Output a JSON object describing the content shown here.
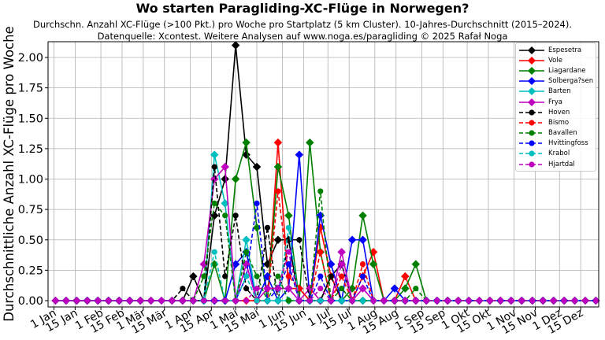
{
  "title": "Wo starten Paragliding-XC-Flüge in Norwegen?",
  "subtitle_line1": "Durchschn. Anzahl XC-Flüge (>100 Pkt.) pro Woche pro Startplatz (5 km Cluster). 10-Jahres-Durchschnitt (2015–2024).",
  "subtitle_line2": "Datenquelle: Xcontest. Weitere Analysen auf www.noga.es/paragliding © 2025 Rafał Noga",
  "chart_data": {
    "type": "line",
    "title": "Wo starten Paragliding-XC-Flüge in Norwegen?",
    "xlabel": "",
    "ylabel": "Durchschnittliche Anzahl XC-Flüge pro Woche",
    "ylim": [
      -0.05,
      2.14
    ],
    "grid": true,
    "legend_position": "upper right",
    "x": "week index 1..52 (weekly points from 1 Jan to end Dec)",
    "xtick_labels": [
      "1 Jan",
      "15 Jan",
      "1 Feb",
      "15 Feb",
      "1 Mär",
      "15 Mär",
      "1 Apr",
      "15 Apr",
      "1 Mai",
      "15 Mai",
      "1 Jun",
      "15 Jun",
      "1 Jul",
      "15 Jul",
      "1 Aug",
      "15 Aug",
      "1 Sep",
      "15 Sep",
      "1 Okt",
      "15 Okt",
      "1 Nov",
      "15 Nov",
      "1 Dez",
      "15 Dez"
    ],
    "ytick_labels": [
      "0.00",
      "0.25",
      "0.50",
      "0.75",
      "1.00",
      "1.25",
      "1.50",
      "1.75",
      "2.00"
    ],
    "series": [
      {
        "name": "Espesetra",
        "color": "#000000",
        "style": "solid",
        "marker": "diamond",
        "values": [
          0,
          0,
          0,
          0,
          0,
          0,
          0,
          0,
          0,
          0,
          0,
          0,
          0,
          0.2,
          0,
          0.7,
          1.0,
          2.1,
          1.2,
          1.1,
          0.3,
          0.5,
          0.5,
          0,
          0,
          0,
          0.2,
          0.3,
          0,
          0,
          0,
          0,
          0,
          0,
          0,
          0,
          0,
          0,
          0,
          0,
          0,
          0,
          0,
          0,
          0,
          0,
          0,
          0,
          0,
          0,
          0,
          0
        ]
      },
      {
        "name": "Vole",
        "color": "#ff0000",
        "style": "solid",
        "marker": "diamond",
        "values": [
          0,
          0,
          0,
          0,
          0,
          0,
          0,
          0,
          0,
          0,
          0,
          0,
          0,
          0,
          0,
          0,
          0,
          0,
          0,
          0,
          0,
          1.3,
          0.1,
          0.1,
          0,
          0.6,
          0.2,
          0,
          0,
          0.2,
          0.4,
          0,
          0,
          0.2,
          0,
          0,
          0,
          0,
          0,
          0,
          0,
          0,
          0,
          0,
          0,
          0,
          0,
          0,
          0,
          0,
          0,
          0
        ]
      },
      {
        "name": "Liagardane",
        "color": "#008000",
        "style": "solid",
        "marker": "diamond",
        "values": [
          0,
          0,
          0,
          0,
          0,
          0,
          0,
          0,
          0,
          0,
          0,
          0,
          0,
          0,
          0,
          0.3,
          0,
          1.0,
          1.3,
          0.6,
          0,
          1.1,
          0.7,
          0,
          1.3,
          0.4,
          0,
          0,
          0.1,
          0.7,
          0.3,
          0,
          0,
          0.1,
          0.3,
          0,
          0,
          0,
          0,
          0,
          0,
          0,
          0,
          0,
          0,
          0,
          0,
          0,
          0,
          0,
          0,
          0
        ]
      },
      {
        "name": "Solberga?sen",
        "color": "#0000ff",
        "style": "solid",
        "marker": "diamond",
        "values": [
          0,
          0,
          0,
          0,
          0,
          0,
          0,
          0,
          0,
          0,
          0,
          0,
          0,
          0,
          0,
          0,
          0,
          0.3,
          0.4,
          0,
          0.2,
          0,
          0.1,
          1.2,
          0,
          0.7,
          0.3,
          0,
          0.5,
          0.5,
          0,
          0,
          0.1,
          0,
          0,
          0,
          0,
          0,
          0,
          0,
          0,
          0,
          0,
          0,
          0,
          0,
          0,
          0,
          0,
          0,
          0,
          0
        ]
      },
      {
        "name": "Barten",
        "color": "#00bfbf",
        "style": "solid",
        "marker": "diamond",
        "values": [
          0,
          0,
          0,
          0,
          0,
          0,
          0,
          0,
          0,
          0,
          0,
          0,
          0,
          0,
          0,
          1.2,
          0.8,
          0,
          0.5,
          0,
          0,
          0,
          0,
          0,
          0,
          0,
          0,
          0,
          0,
          0,
          0,
          0,
          0,
          0,
          0,
          0,
          0,
          0,
          0,
          0,
          0,
          0,
          0,
          0,
          0,
          0,
          0,
          0,
          0,
          0,
          0,
          0
        ]
      },
      {
        "name": "Frya",
        "color": "#bf00bf",
        "style": "solid",
        "marker": "diamond",
        "values": [
          0,
          0,
          0,
          0,
          0,
          0,
          0,
          0,
          0,
          0,
          0,
          0,
          0,
          0,
          0.3,
          1.0,
          1.1,
          0,
          0.3,
          0,
          0.1,
          0.1,
          0.1,
          0,
          0.1,
          0,
          0,
          0.4,
          0,
          0.1,
          0,
          0,
          0,
          0,
          0,
          0,
          0,
          0,
          0,
          0,
          0,
          0,
          0,
          0,
          0,
          0,
          0,
          0,
          0,
          0,
          0,
          0
        ]
      },
      {
        "name": "Hoven",
        "color": "#000000",
        "style": "dashed",
        "marker": "circle",
        "values": [
          0,
          0,
          0,
          0,
          0,
          0,
          0,
          0,
          0,
          0,
          0,
          0,
          0.1,
          0,
          0,
          1.1,
          0.2,
          0.7,
          0.1,
          0,
          0.6,
          0,
          0.5,
          0.5,
          0,
          0,
          0.2,
          0,
          0,
          0,
          0,
          0,
          0,
          0,
          0,
          0,
          0,
          0,
          0,
          0,
          0,
          0,
          0,
          0,
          0,
          0,
          0,
          0,
          0,
          0,
          0,
          0
        ]
      },
      {
        "name": "Bismo",
        "color": "#ff0000",
        "style": "dashed",
        "marker": "circle",
        "values": [
          0,
          0,
          0,
          0,
          0,
          0,
          0,
          0,
          0,
          0,
          0,
          0,
          0,
          0,
          0,
          0,
          0,
          0,
          0,
          0,
          0,
          0.9,
          0.2,
          0.1,
          0,
          0.4,
          0,
          0.2,
          0,
          0.3,
          0,
          0,
          0,
          0,
          0,
          0,
          0,
          0,
          0,
          0,
          0,
          0,
          0,
          0,
          0,
          0,
          0,
          0,
          0,
          0,
          0,
          0
        ]
      },
      {
        "name": "Bavallen",
        "color": "#008000",
        "style": "dashed",
        "marker": "circle",
        "values": [
          0,
          0,
          0,
          0,
          0,
          0,
          0,
          0,
          0,
          0,
          0,
          0,
          0,
          0,
          0.2,
          0.8,
          0.7,
          0,
          0.4,
          0.2,
          0,
          0.2,
          0,
          0,
          0,
          0.9,
          0,
          0.1,
          0,
          0,
          0,
          0,
          0,
          0,
          0.1,
          0,
          0,
          0,
          0,
          0,
          0,
          0,
          0,
          0,
          0,
          0,
          0,
          0,
          0,
          0,
          0,
          0
        ]
      },
      {
        "name": "Hvittingfoss",
        "color": "#0000ff",
        "style": "dashed",
        "marker": "circle",
        "values": [
          0,
          0,
          0,
          0,
          0,
          0,
          0,
          0,
          0,
          0,
          0,
          0,
          0,
          0,
          0,
          0,
          0,
          0,
          0.2,
          0.8,
          0,
          0.1,
          0.3,
          0,
          0,
          0.2,
          0,
          0,
          0,
          0.2,
          0,
          0,
          0,
          0,
          0,
          0,
          0,
          0,
          0,
          0,
          0,
          0,
          0,
          0,
          0,
          0,
          0,
          0,
          0,
          0,
          0,
          0
        ]
      },
      {
        "name": "Krabol",
        "color": "#00bfbf",
        "style": "dashed",
        "marker": "circle",
        "values": [
          0,
          0,
          0,
          0,
          0,
          0,
          0,
          0,
          0,
          0,
          0,
          0,
          0,
          0,
          0,
          0.4,
          0,
          0,
          0.2,
          0,
          0,
          0,
          0.6,
          0,
          0,
          0,
          0,
          0,
          0,
          0,
          0,
          0,
          0,
          0,
          0,
          0,
          0,
          0,
          0,
          0,
          0,
          0,
          0,
          0,
          0,
          0,
          0,
          0,
          0,
          0,
          0,
          0
        ]
      },
      {
        "name": "Hjartdal",
        "color": "#bf00bf",
        "style": "dashed",
        "marker": "circle",
        "values": [
          0,
          0,
          0,
          0,
          0,
          0,
          0,
          0,
          0,
          0,
          0,
          0,
          0,
          0,
          0,
          0,
          0,
          0,
          0,
          0.1,
          0.1,
          0.1,
          0.4,
          0,
          0,
          0.1,
          0,
          0.3,
          0,
          0.1,
          0,
          0,
          0,
          0,
          0,
          0,
          0,
          0,
          0,
          0,
          0,
          0,
          0,
          0,
          0,
          0,
          0,
          0,
          0,
          0,
          0,
          0
        ]
      }
    ]
  }
}
